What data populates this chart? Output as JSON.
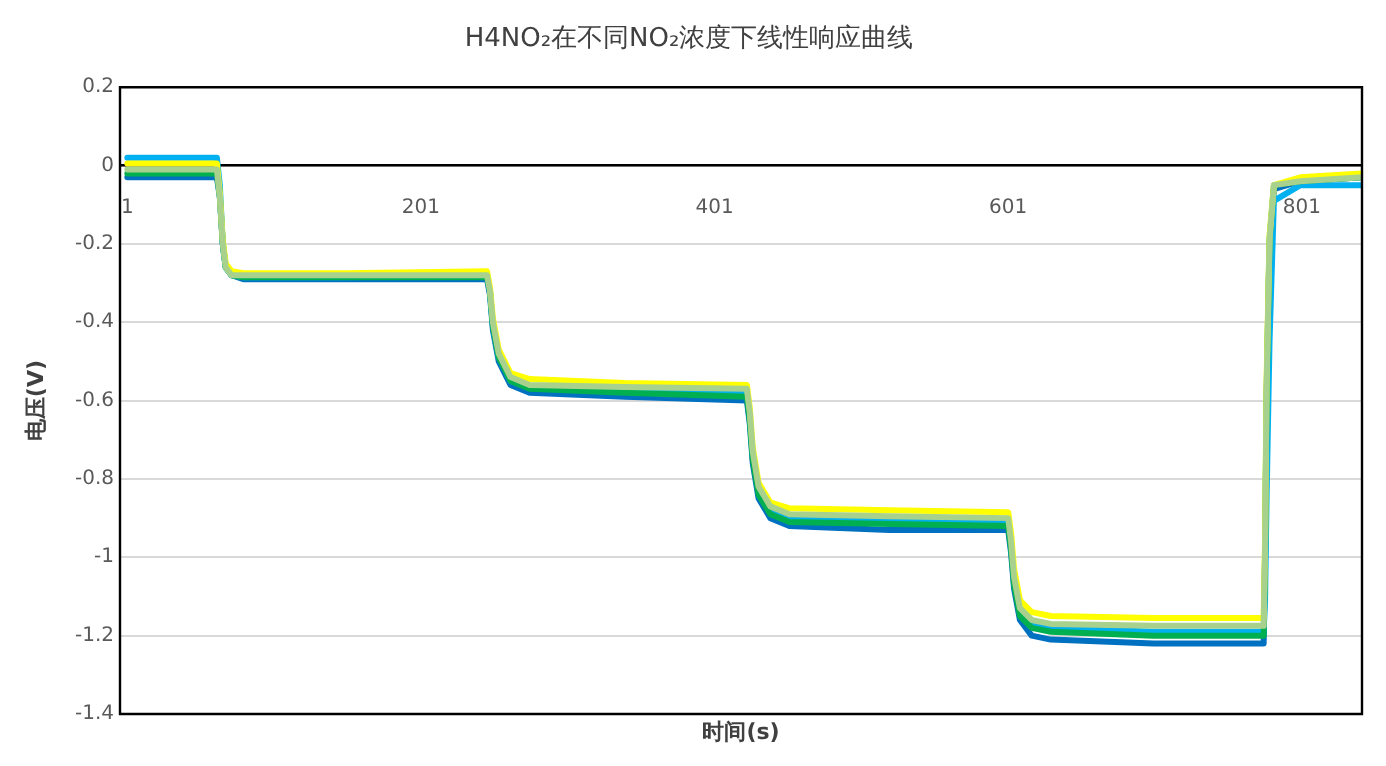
{
  "chart_data": {
    "type": "line",
    "title": "H4NO₂在不同NO₂浓度下线性响应曲线",
    "xlabel": "时间(s)",
    "ylabel": "电压(V)",
    "x": [
      1,
      62,
      64,
      66,
      68,
      72,
      80,
      150,
      246,
      248,
      250,
      254,
      262,
      275,
      340,
      423,
      425,
      427,
      431,
      439,
      452,
      520,
      601,
      603,
      605,
      609,
      617,
      630,
      700,
      775,
      776,
      777,
      779,
      782,
      800,
      842
    ],
    "series": [
      {
        "color": "#0070c0",
        "values": [
          -0.03,
          -0.03,
          -0.08,
          -0.2,
          -0.26,
          -0.28,
          -0.29,
          -0.29,
          -0.29,
          -0.33,
          -0.42,
          -0.5,
          -0.56,
          -0.58,
          -0.59,
          -0.6,
          -0.66,
          -0.76,
          -0.85,
          -0.9,
          -0.92,
          -0.93,
          -0.93,
          -0.99,
          -1.08,
          -1.16,
          -1.2,
          -1.21,
          -1.22,
          -1.22,
          -1.0,
          -0.6,
          -0.2,
          -0.06,
          -0.04,
          -0.03
        ]
      },
      {
        "color": "#00b0f0",
        "values": [
          0.02,
          0.02,
          -0.05,
          -0.2,
          -0.26,
          -0.28,
          -0.285,
          -0.285,
          -0.28,
          -0.32,
          -0.41,
          -0.49,
          -0.55,
          -0.565,
          -0.575,
          -0.58,
          -0.64,
          -0.74,
          -0.83,
          -0.88,
          -0.9,
          -0.905,
          -0.91,
          -0.97,
          -1.06,
          -1.14,
          -1.17,
          -1.18,
          -1.19,
          -1.19,
          -1.1,
          -0.85,
          -0.45,
          -0.09,
          -0.05,
          -0.05
        ]
      },
      {
        "color": "#00b050",
        "values": [
          -0.02,
          -0.02,
          -0.08,
          -0.2,
          -0.26,
          -0.28,
          -0.285,
          -0.285,
          -0.285,
          -0.32,
          -0.41,
          -0.49,
          -0.55,
          -0.57,
          -0.58,
          -0.59,
          -0.65,
          -0.75,
          -0.84,
          -0.89,
          -0.91,
          -0.915,
          -0.92,
          -0.98,
          -1.07,
          -1.15,
          -1.18,
          -1.19,
          -1.2,
          -1.2,
          -0.99,
          -0.59,
          -0.19,
          -0.05,
          -0.04,
          -0.03
        ]
      },
      {
        "color": "#ffff00",
        "values": [
          0.005,
          0.005,
          -0.07,
          -0.19,
          -0.25,
          -0.27,
          -0.275,
          -0.275,
          -0.27,
          -0.31,
          -0.39,
          -0.47,
          -0.53,
          -0.545,
          -0.555,
          -0.56,
          -0.62,
          -0.72,
          -0.81,
          -0.86,
          -0.875,
          -0.88,
          -0.885,
          -0.94,
          -1.03,
          -1.11,
          -1.14,
          -1.15,
          -1.155,
          -1.155,
          -0.95,
          -0.55,
          -0.18,
          -0.05,
          -0.03,
          -0.02
        ]
      },
      {
        "color": "#a9d18e",
        "values": [
          -0.01,
          -0.01,
          -0.08,
          -0.2,
          -0.26,
          -0.28,
          -0.28,
          -0.28,
          -0.28,
          -0.32,
          -0.4,
          -0.48,
          -0.54,
          -0.56,
          -0.565,
          -0.57,
          -0.63,
          -0.73,
          -0.82,
          -0.87,
          -0.89,
          -0.895,
          -0.9,
          -0.96,
          -1.05,
          -1.13,
          -1.16,
          -1.17,
          -1.175,
          -1.175,
          -0.97,
          -0.57,
          -0.19,
          -0.05,
          -0.04,
          -0.03
        ]
      }
    ],
    "xlim": [
      -4,
      842
    ],
    "xticks": [
      1,
      201,
      401,
      601,
      801
    ],
    "ylim": [
      -1.4,
      0.2
    ],
    "yticks": [
      0.2,
      0,
      -0.2,
      -0.4,
      -0.6,
      -0.8,
      -1,
      -1.2,
      -1.4
    ],
    "grid": "y",
    "legend": false,
    "marker": "none",
    "line_style": "solid"
  }
}
